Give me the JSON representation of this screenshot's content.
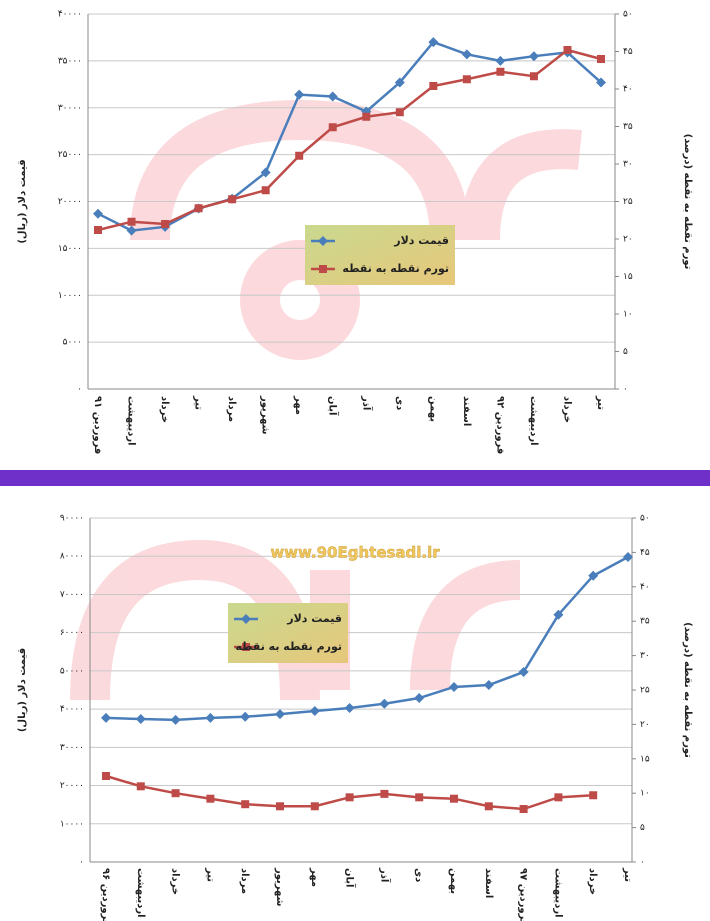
{
  "chart_data": [
    {
      "type": "line",
      "categories": [
        "فروردین ۹۱",
        "اردیبهشت",
        "خرداد",
        "تیر",
        "مرداد",
        "شهریور",
        "مهر",
        "آبان",
        "آذر",
        "دی",
        "بهمن",
        "اسفند",
        "فروردین ۹۲",
        "اردیبهشت",
        "خرداد",
        "تیر"
      ],
      "series": [
        {
          "name": "قیمت دلار",
          "color": "#4a7ebb",
          "values": [
            18700,
            16900,
            17300,
            19250,
            20300,
            23100,
            31400,
            31200,
            29600,
            32700,
            37000,
            35700,
            35000,
            35500,
            35900,
            32700
          ]
        },
        {
          "name": "تورم نقطه به نقطه",
          "color": "#be4b48",
          "axis": "y2",
          "values": [
            21.2,
            22.3,
            22,
            24.1,
            25.3,
            26.5,
            31.1,
            34.9,
            36.3,
            36.9,
            40.4,
            41.3,
            42.3,
            41.7,
            45.2,
            44
          ]
        }
      ],
      "y_label": "قیمت دلار (ریال)",
      "y2_label": "تورم نقطه به نقطه (درصد)",
      "ylim": [
        0,
        40000
      ],
      "yticks": [
        {
          "value": 0,
          "label": "۰"
        },
        {
          "value": 5000,
          "label": "۵۰۰۰"
        },
        {
          "value": 10000,
          "label": "۱۰۰۰۰"
        },
        {
          "value": 15000,
          "label": "۱۵۰۰۰"
        },
        {
          "value": 20000,
          "label": "۲۰۰۰۰"
        },
        {
          "value": 25000,
          "label": "۲۵۰۰۰"
        },
        {
          "value": 30000,
          "label": "۳۰۰۰۰"
        },
        {
          "value": 35000,
          "label": "۳۵۰۰۰"
        },
        {
          "value": 40000,
          "label": "۴۰۰۰۰"
        }
      ],
      "y2lim": [
        0,
        50
      ],
      "y2ticks": [
        {
          "value": 0,
          "label": "۰"
        },
        {
          "value": 5,
          "label": "۵"
        },
        {
          "value": 10,
          "label": "۱۰"
        },
        {
          "value": 15,
          "label": "۱۵"
        },
        {
          "value": 20,
          "label": "۲۰"
        },
        {
          "value": 25,
          "label": "۲۵"
        },
        {
          "value": 30,
          "label": "۳۰"
        },
        {
          "value": 35,
          "label": "۳۵"
        },
        {
          "value": 40,
          "label": "۴۰"
        },
        {
          "value": 45,
          "label": "۴۵"
        },
        {
          "value": 50,
          "label": "۵۰"
        }
      ],
      "grid": true
    },
    {
      "type": "line",
      "watermark": "www.90Eghtesadi.ir",
      "categories": [
        "فروردین ۹۶",
        "اردیبهشت",
        "خرداد",
        "تیر",
        "مرداد",
        "شهریور",
        "مهر",
        "آبان",
        "آذر",
        "دی",
        "بهمن",
        "اسفند",
        "فروردین ۹۷",
        "اردیبهشت",
        "خرداد",
        "تیر"
      ],
      "series": [
        {
          "name": "قیمت دلار",
          "color": "#4a7ebb",
          "values": [
            37700,
            37400,
            37200,
            37700,
            38000,
            38700,
            39500,
            40300,
            41400,
            42900,
            45800,
            46300,
            49700,
            64700,
            74900,
            79800
          ]
        },
        {
          "name": "تورم نقطه به نقطه",
          "color": "#be4b48",
          "axis": "y2",
          "values": [
            12.5,
            11,
            10,
            9.2,
            8.4,
            8.1,
            8.1,
            9.4,
            9.9,
            9.4,
            9.2,
            8.1,
            7.7,
            9.4,
            9.7,
            null
          ]
        }
      ],
      "y_label": "قیمت دلار (ریال)",
      "y2_label": "تورم نقطه به نقطه (درصد)",
      "ylim": [
        0,
        90000
      ],
      "yticks": [
        {
          "value": 0,
          "label": "۰"
        },
        {
          "value": 10000,
          "label": "۱۰۰۰۰"
        },
        {
          "value": 20000,
          "label": "۲۰۰۰۰"
        },
        {
          "value": 30000,
          "label": "۳۰۰۰۰"
        },
        {
          "value": 40000,
          "label": "۴۰۰۰۰"
        },
        {
          "value": 50000,
          "label": "۵۰۰۰۰"
        },
        {
          "value": 60000,
          "label": "۶۰۰۰۰"
        },
        {
          "value": 70000,
          "label": "۷۰۰۰۰"
        },
        {
          "value": 80000,
          "label": "۸۰۰۰۰"
        },
        {
          "value": 90000,
          "label": "۹۰۰۰۰"
        }
      ],
      "y2lim": [
        0,
        50
      ],
      "y2ticks": [
        {
          "value": 0,
          "label": "۰"
        },
        {
          "value": 5,
          "label": "۵"
        },
        {
          "value": 10,
          "label": "۱۰"
        },
        {
          "value": 15,
          "label": "۱۵"
        },
        {
          "value": 20,
          "label": "۲۰"
        },
        {
          "value": 25,
          "label": "۲۵"
        },
        {
          "value": 30,
          "label": "۳۰"
        },
        {
          "value": 35,
          "label": "۳۵"
        },
        {
          "value": 40,
          "label": "۴۰"
        },
        {
          "value": 45,
          "label": "۴۵"
        },
        {
          "value": 50,
          "label": "۵۰"
        }
      ],
      "grid": true
    }
  ]
}
